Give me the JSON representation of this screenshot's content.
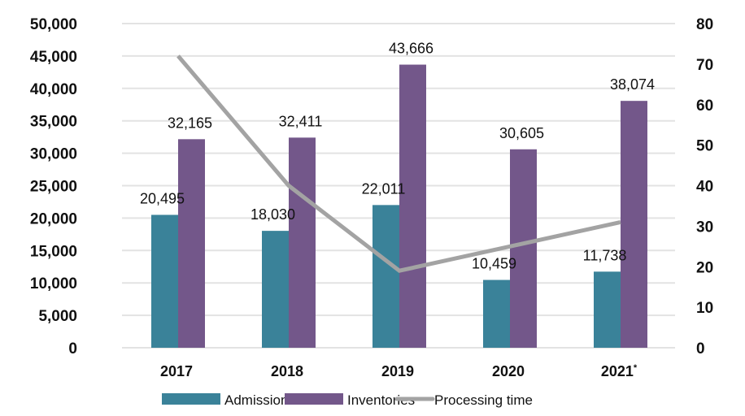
{
  "chart_data": {
    "type": "bar",
    "title": "",
    "xlabel": "",
    "ylabel": "",
    "y2label": "",
    "categories": [
      "2017",
      "2018",
      "2019",
      "2020",
      "2021"
    ],
    "category_suffix": [
      "",
      "",
      "",
      "",
      "*"
    ],
    "ylim": [
      0,
      50000
    ],
    "y_ticks": [
      "0",
      "5,000",
      "10,000",
      "15,000",
      "20,000",
      "25,000",
      "30,000",
      "35,000",
      "40,000",
      "45,000",
      "50,000"
    ],
    "y2lim": [
      0,
      80
    ],
    "y2_ticks": [
      "0",
      "10",
      "20",
      "30",
      "40",
      "50",
      "60",
      "70",
      "80"
    ],
    "grid": true,
    "legend_position": "bottom-center",
    "series": [
      {
        "name": "Admissions",
        "kind": "bar",
        "axis": "left",
        "color": "#3a8299",
        "values": [
          20495,
          18030,
          22011,
          10459,
          11738
        ],
        "labels": [
          "20,495",
          "18,030",
          "22,011",
          "10,459",
          "11,738"
        ]
      },
      {
        "name": "Inventories",
        "kind": "bar",
        "axis": "left",
        "color": "#73578a",
        "values": [
          32165,
          32411,
          43666,
          30605,
          38074
        ],
        "labels": [
          "32,165",
          "32,411",
          "43,666",
          "30,605",
          "38,074"
        ]
      },
      {
        "name": "Processing time",
        "kind": "line",
        "axis": "right",
        "color": "#a3a3a3",
        "values": [
          72,
          40,
          19,
          25,
          31
        ]
      }
    ]
  }
}
